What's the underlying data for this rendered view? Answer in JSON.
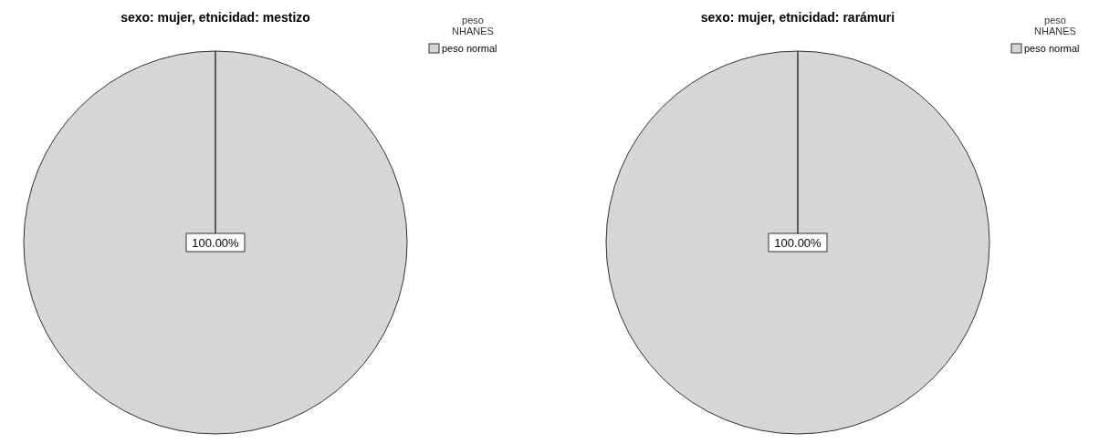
{
  "chart_data": [
    {
      "type": "pie",
      "title": "sexo: mujer, etnicidad: mestizo",
      "legend_title": "peso NHANES",
      "categories": [
        "peso normal"
      ],
      "values": [
        100
      ],
      "colors": [
        "#d6d6d6"
      ],
      "value_labels": [
        "100.00%"
      ],
      "legend": "top right"
    },
    {
      "type": "pie",
      "title": "sexo: mujer, etnicidad: rarámuri",
      "legend_title": "peso NHANES",
      "categories": [
        "peso normal"
      ],
      "values": [
        100
      ],
      "colors": [
        "#d6d6d6"
      ],
      "value_labels": [
        "100.00%"
      ],
      "legend": "top right"
    }
  ]
}
